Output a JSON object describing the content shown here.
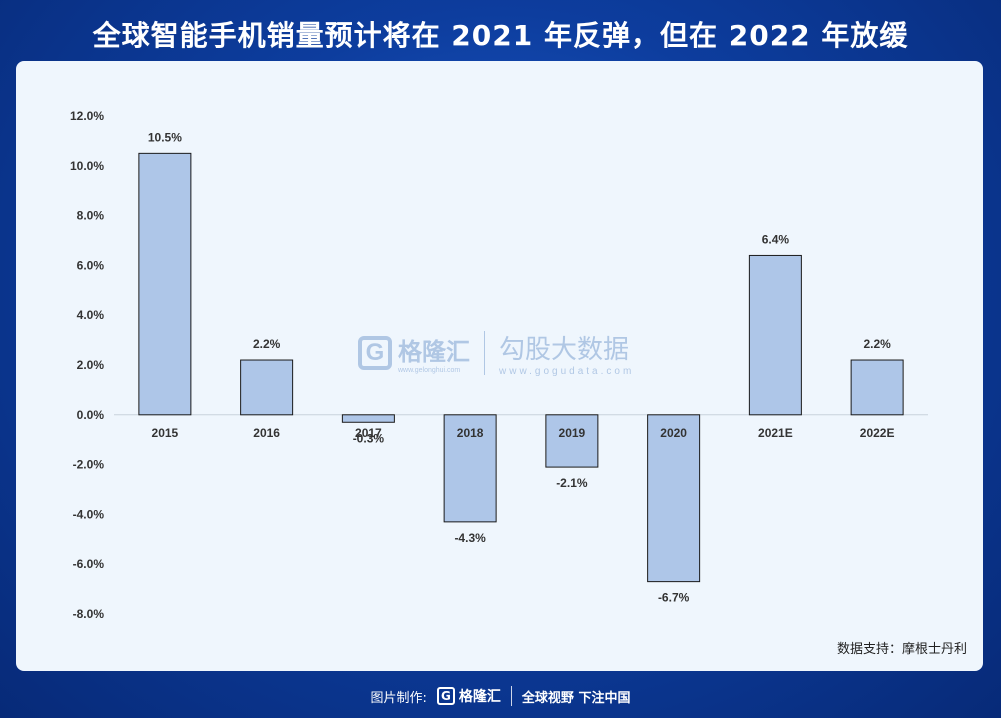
{
  "title": "全球智能手机销量预计将在 2021 年反弹，但在 2022 年放缓",
  "source": "数据支持：摩根士丹利",
  "watermark": {
    "logo_letter": "G",
    "name": "格隆汇",
    "url": "www.gelonghui.com",
    "name2": "勾股大数据",
    "url2": "www.gogudata.com"
  },
  "footer": {
    "made_by": "图片制作:",
    "logo_letter": "G",
    "brand": "格隆汇",
    "slogan": "全球视野 下注中国"
  },
  "colors": {
    "bar_fill": "#aec6e8",
    "bar_stroke": "#1a1a1a",
    "panel": "#eff6fd"
  },
  "chart_data": {
    "type": "bar",
    "categories": [
      "2015",
      "2016",
      "2017",
      "2018",
      "2019",
      "2020",
      "2021E",
      "2022E"
    ],
    "values": [
      10.5,
      2.2,
      -0.3,
      -4.3,
      -2.1,
      -6.7,
      6.4,
      2.2
    ],
    "value_labels": [
      "10.5%",
      "2.2%",
      "-0.3%",
      "-4.3%",
      "-2.1%",
      "-6.7%",
      "6.4%",
      "2.2%"
    ],
    "yticks": [
      "12.0%",
      "10.0%",
      "8.0%",
      "6.0%",
      "4.0%",
      "2.0%",
      "0.0%",
      "-2.0%",
      "-4.0%",
      "-6.0%",
      "-8.0%"
    ],
    "ylim": [
      -8,
      12
    ],
    "ytick_step": 2,
    "grid": false,
    "xlabel": "",
    "ylabel": ""
  }
}
